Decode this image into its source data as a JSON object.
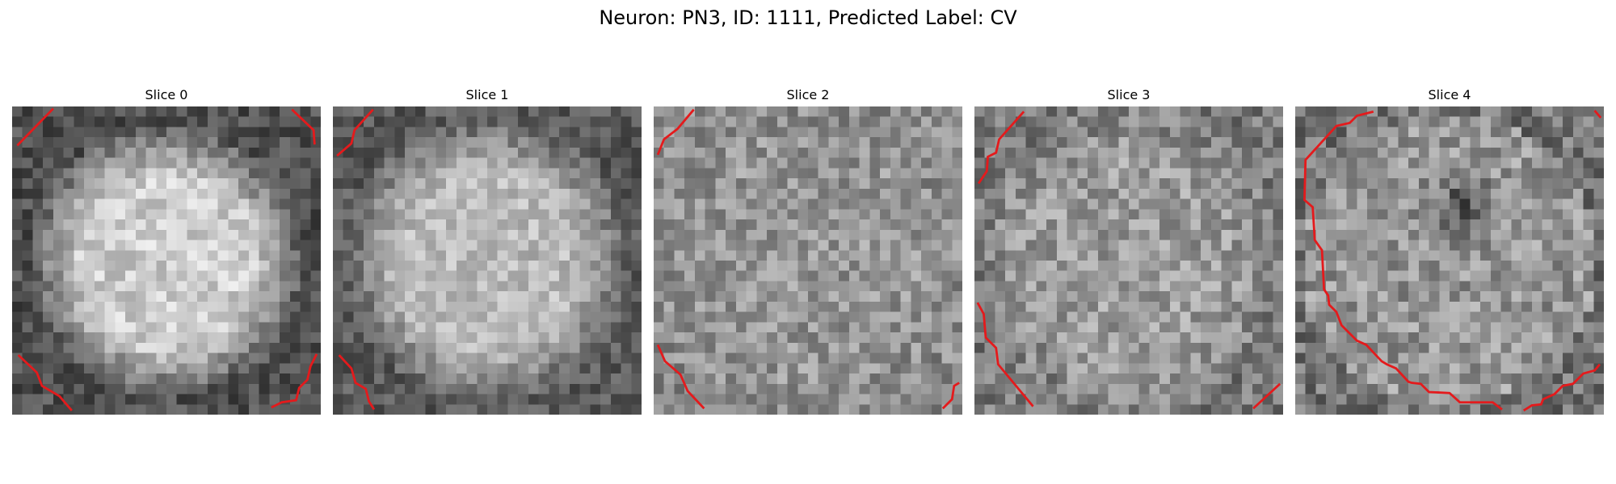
{
  "figure": {
    "title": "Neuron: PN3, ID: 1111, Predicted Label: CV"
  },
  "contour_color": "#e41a1c",
  "panels": [
    {
      "title": "Slice 0",
      "grid": 30,
      "cell": {
        "mode": "disk",
        "peak": 205,
        "edge": 80,
        "radius": 0.56,
        "noise": 34
      },
      "contours": [
        [
          [
            0.5,
            3.8
          ],
          [
            4.0,
            0.2
          ]
        ],
        [
          [
            27.2,
            0.3
          ],
          [
            29.3,
            2.3
          ],
          [
            29.4,
            3.7
          ]
        ],
        [
          [
            0.6,
            24.2
          ],
          [
            2.4,
            25.9
          ],
          [
            2.9,
            27.2
          ],
          [
            4.6,
            28.2
          ],
          [
            5.8,
            29.6
          ]
        ],
        [
          [
            25.2,
            29.3
          ],
          [
            26.2,
            28.8
          ],
          [
            27.6,
            28.6
          ],
          [
            27.9,
            27.4
          ],
          [
            28.7,
            26.6
          ],
          [
            29.0,
            25.3
          ],
          [
            29.6,
            24.1
          ]
        ]
      ]
    },
    {
      "title": "Slice 1",
      "grid": 30,
      "cell": {
        "mode": "disk",
        "peak": 185,
        "edge": 90,
        "radius": 0.6,
        "noise": 32
      },
      "contours": [
        [
          [
            0.4,
            4.8
          ],
          [
            1.8,
            3.6
          ],
          [
            2.1,
            2.3
          ],
          [
            3.9,
            0.3
          ]
        ],
        [
          [
            0.6,
            24.2
          ],
          [
            1.8,
            25.5
          ],
          [
            2.2,
            26.9
          ],
          [
            3.2,
            27.5
          ],
          [
            3.5,
            28.7
          ],
          [
            4.0,
            29.5
          ]
        ]
      ]
    },
    {
      "title": "Slice 2",
      "grid": 30,
      "cell": {
        "mode": "flat",
        "peak": 150,
        "edge": 140,
        "radius": 0.7,
        "noise": 40
      },
      "contours": [
        [
          [
            0.4,
            4.7
          ],
          [
            1.0,
            3.2
          ],
          [
            2.3,
            2.2
          ],
          [
            3.9,
            0.3
          ]
        ],
        [
          [
            0.4,
            23.2
          ],
          [
            1.1,
            24.8
          ],
          [
            2.6,
            26.1
          ],
          [
            3.3,
            27.7
          ],
          [
            4.9,
            29.4
          ]
        ],
        [
          [
            28.1,
            29.4
          ],
          [
            29.0,
            28.5
          ],
          [
            29.2,
            27.2
          ],
          [
            29.7,
            26.9
          ]
        ]
      ]
    },
    {
      "title": "Slice 3",
      "grid": 30,
      "cell": {
        "mode": "flat",
        "peak": 155,
        "edge": 120,
        "radius": 0.7,
        "noise": 42
      },
      "contours": [
        [
          [
            0.4,
            7.5
          ],
          [
            1.2,
            6.3
          ],
          [
            1.3,
            4.9
          ],
          [
            2.1,
            4.5
          ],
          [
            2.4,
            3.2
          ],
          [
            4.8,
            0.5
          ]
        ],
        [
          [
            0.3,
            19.1
          ],
          [
            0.9,
            20.2
          ],
          [
            1.1,
            22.5
          ],
          [
            2.1,
            23.5
          ],
          [
            2.3,
            25.1
          ],
          [
            5.7,
            29.2
          ]
        ],
        [
          [
            27.1,
            29.4
          ],
          [
            29.7,
            27.0
          ]
        ]
      ]
    },
    {
      "title": "Slice 4",
      "grid": 30,
      "cell": {
        "mode": "dark-center",
        "peak": 150,
        "edge": 120,
        "radius": 0.7,
        "noise": 44
      },
      "contours": [
        [
          [
            7.6,
            0.5
          ],
          [
            6.0,
            0.9
          ],
          [
            5.3,
            1.6
          ],
          [
            4.0,
            1.9
          ],
          [
            1.0,
            5.2
          ],
          [
            0.9,
            9.1
          ],
          [
            1.7,
            9.8
          ],
          [
            1.9,
            13.0
          ],
          [
            2.6,
            14.0
          ],
          [
            2.8,
            17.8
          ],
          [
            3.2,
            18.4
          ],
          [
            3.3,
            19.3
          ],
          [
            4.0,
            20.0
          ],
          [
            4.5,
            21.3
          ],
          [
            6.0,
            22.8
          ],
          [
            6.9,
            23.2
          ],
          [
            8.4,
            24.8
          ],
          [
            8.9,
            25.1
          ],
          [
            9.8,
            25.5
          ],
          [
            11.0,
            26.8
          ],
          [
            11.3,
            26.9
          ],
          [
            12.2,
            27.0
          ],
          [
            13.0,
            27.8
          ],
          [
            15.0,
            27.9
          ],
          [
            16.0,
            28.8
          ],
          [
            19.2,
            28.8
          ],
          [
            20.1,
            29.5
          ]
        ],
        [
          [
            22.2,
            29.6
          ],
          [
            23.0,
            29.1
          ],
          [
            23.9,
            29.0
          ],
          [
            24.1,
            28.5
          ],
          [
            25.2,
            28.0
          ],
          [
            26.0,
            27.2
          ],
          [
            27.0,
            27.0
          ],
          [
            28.0,
            26.0
          ],
          [
            29.1,
            25.7
          ],
          [
            29.6,
            25.1
          ]
        ],
        [
          [
            29.1,
            0.4
          ],
          [
            29.7,
            1.1
          ]
        ]
      ]
    }
  ]
}
